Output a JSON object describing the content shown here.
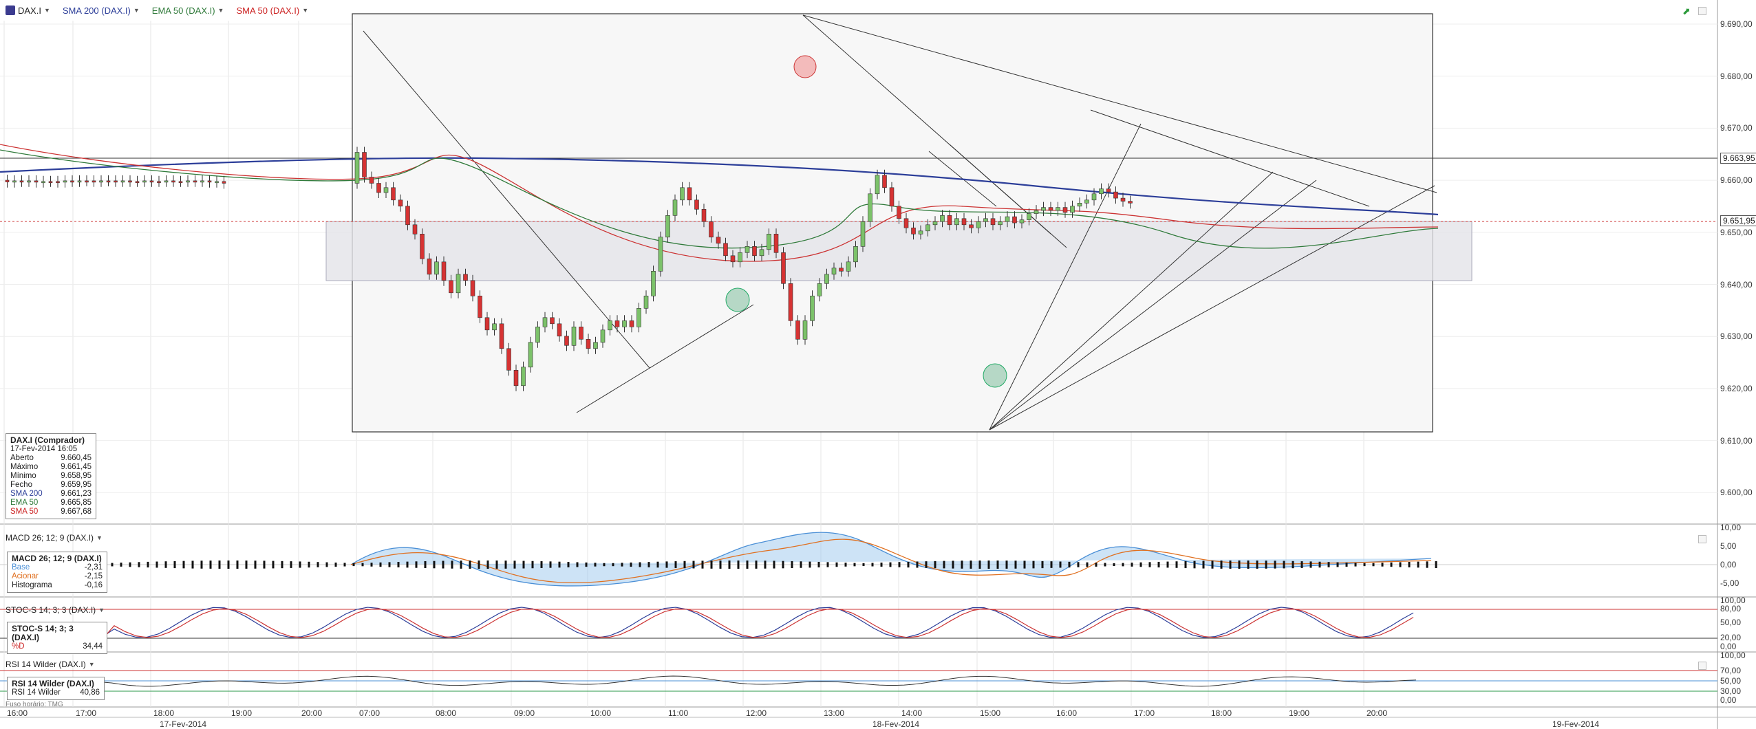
{
  "toolbar": {
    "symbol": "DAX.I",
    "indicators": [
      {
        "label": "SMA 200 (DAX.I)",
        "color": "#2c3e99"
      },
      {
        "label": "EMA 50 (DAX.I)",
        "color": "#2f7a3a"
      },
      {
        "label": "SMA 50 (DAX.I)",
        "color": "#cc2222"
      }
    ]
  },
  "price_axis": {
    "ticks": [
      "9.690,00",
      "9.680,00",
      "9.670,00",
      "9.660,00",
      "9.650,00",
      "9.640,00",
      "9.630,00",
      "9.620,00",
      "9.610,00",
      "9.600,00"
    ],
    "tags": [
      "9.663,95",
      "9.651,95"
    ]
  },
  "info_box": {
    "title": "DAX.I (Comprador)",
    "datetime": "17-Fev-2014 16:05",
    "rows": [
      {
        "label": "Aberto",
        "value": "9.660,45",
        "color": "#222"
      },
      {
        "label": "Máximo",
        "value": "9.661,45",
        "color": "#222"
      },
      {
        "label": "Mínimo",
        "value": "9.658,95",
        "color": "#222"
      },
      {
        "label": "Fecho",
        "value": "9.659,95",
        "color": "#222"
      },
      {
        "label": "SMA 200",
        "value": "9.661,23",
        "color": "#2c3e99"
      },
      {
        "label": "EMA 50",
        "value": "9.665,85",
        "color": "#2f7a3a"
      },
      {
        "label": "SMA 50",
        "value": "9.667,68",
        "color": "#cc2222"
      }
    ]
  },
  "macd": {
    "title": "MACD 26; 12; 9 (DAX.I)",
    "box_title": "MACD 26; 12; 9 (DAX.I)",
    "rows": [
      {
        "label": "Base",
        "value": "-2,31",
        "color": "#4a8fd6"
      },
      {
        "label": "Acionar",
        "value": "-2,15",
        "color": "#e07020"
      },
      {
        "label": "Histograma",
        "value": "-0,16",
        "color": "#222"
      }
    ],
    "axis": [
      "10,00",
      "5,00",
      "0,00",
      "-5,00"
    ]
  },
  "stoch": {
    "title": "STOC-S 14; 3; 3 (DAX.I)",
    "box_title": "STOC-S 14; 3; 3 (DAX.I)",
    "rows": [
      {
        "label": "%D",
        "value": "34,44",
        "color": "#cc2222"
      }
    ],
    "axis": [
      "100,00",
      "80,00",
      "50,00",
      "20,00",
      "0,00"
    ]
  },
  "rsi": {
    "title": "RSI 14 Wilder (DAX.I)",
    "box_title": "RSI 14 Wilder (DAX.I)",
    "rows": [
      {
        "label": "RSI 14 Wilder",
        "value": "40,86",
        "color": "#222"
      }
    ],
    "axis": [
      "100,00",
      "70,00",
      "50,00",
      "30,00",
      "0,00"
    ]
  },
  "time_axis": {
    "times": [
      "16:00",
      "17:00",
      "18:00",
      "19:00",
      "20:00",
      "07:00",
      "08:00",
      "09:00",
      "10:00",
      "11:00",
      "12:00",
      "13:00",
      "14:00",
      "15:00",
      "16:00",
      "17:00",
      "18:00",
      "19:00",
      "20:00"
    ],
    "dates": [
      "17-Fev-2014",
      "18-Fev-2014",
      "19-Fev-2014"
    ],
    "timezone": "Fuso horário: TMG"
  }
}
